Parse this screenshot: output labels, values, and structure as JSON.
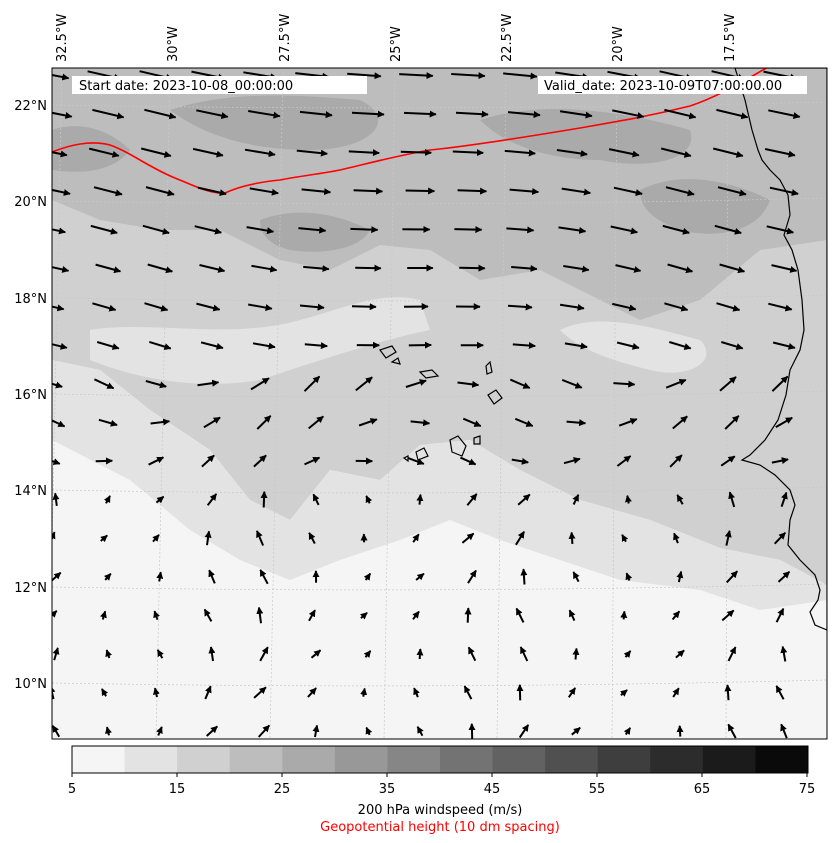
{
  "header": {
    "start_date": "Start date: 2023-10-08_00:00:00",
    "valid_date": "Valid_date: 2023-10-09T07:00:00.00"
  },
  "axes": {
    "lon_labels": [
      "32.5°W",
      "30°W",
      "27.5°W",
      "25°W",
      "22.5°W",
      "20°W",
      "17.5°W"
    ],
    "lat_labels": [
      "22°N",
      "20°N",
      "18°N",
      "16°N",
      "14°N",
      "12°N",
      "10°N"
    ]
  },
  "colorbar": {
    "ticks": [
      "5",
      "15",
      "25",
      "35",
      "45",
      "55",
      "65",
      "75"
    ],
    "label": "200 hPa windspeed (m/s)",
    "sublabel": "Geopotential height (10 dm spacing)",
    "colors": [
      "#f5f5f5",
      "#e3e3e3",
      "#d0d0d0",
      "#bdbdbd",
      "#aaaaaa",
      "#989898",
      "#868686",
      "#737373",
      "#626262",
      "#505050",
      "#3e3e3e",
      "#2c2c2c",
      "#1b1b1b",
      "#0a0a0a"
    ]
  },
  "colors": {
    "height_contour": "#ff0000",
    "sublabel": "#ff0000"
  }
}
